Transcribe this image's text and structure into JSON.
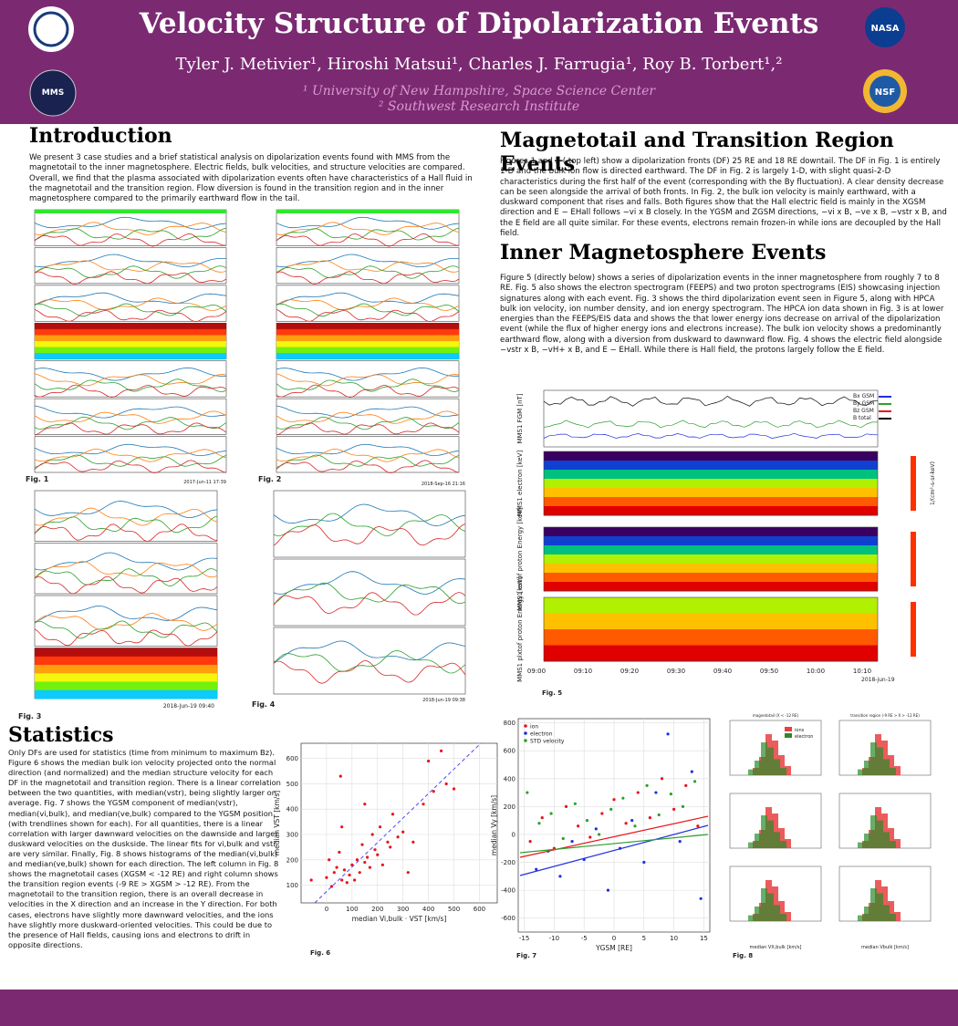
{
  "header": {
    "title": "Velocity Structure of Dipolarization Events",
    "authors": "Tyler J. Metivier¹, Hiroshi Matsui¹, Charles J. Farrugia¹, Roy B. Torbert¹,²",
    "affiliations": [
      "¹ University of New Hampshire, Space Science Center",
      "² Southwest Research Institute"
    ],
    "logos": [
      "MMS",
      "NASA",
      "NSF"
    ]
  },
  "sections": {
    "introduction": {
      "heading": "Introduction",
      "text": "We present 3 case studies and a brief statistical analysis on dipolarization events found with MMS from the magnetotail to the inner magnetosphere. Electric fields, bulk velocities, and structure velocities are compared. Overall, we find that the plasma associated with dipolarization events often have characteristics of a Hall fluid in the magnetotail and the transition region. Flow diversion is found in the transition region and in the inner magnetosphere compared to the primarily earthward flow in the tail."
    },
    "magnetotail": {
      "heading": "Magnetotail and Transition Region Events",
      "text": "Figures 1 and 2 ( top left) show a dipolarization fronts (DF) 25 RE and 18 RE downtail. The DF in Fig. 1 is entirely 1-D and the bulk ion flow is directed earthward. The DF in Fig. 2 is largely 1-D, with slight quasi-2-D characteristics during the first half of the event (corresponding with the By fluctuation). A clear density decrease can be seen alongside the arrival of both fronts. In Fig. 2, the bulk ion velocity is mainly earthward, with a duskward component that rises and falls. Both figures show that the Hall electric field is mainly in the XGSM direction and E − EHall follows −vi x B closely. In the YGSM and ZGSM directions, −vi x B, −ve x B, −vstr x B, and the E field are all quite similar. For these events, electrons remain frozen-in while ions are decoupled by the Hall field."
    },
    "inner": {
      "heading": "Inner Magnetosphere Events",
      "text": "Figure 5 (directly below) shows a series of dipolarization events in the inner magnetosphere from roughly 7 to 8 RE. Fig. 5 also shows the electron spectrogram (FEEPS) and two proton spectrograms (EIS) showcasing injection signatures along with each event. Fig. 3 shows the third dipolarization event seen in Figure 5, along with HPCA bulk ion velocity, ion number density, and ion energy spectrogram. The HPCA ion data shown in Fig. 3 is at lower energies than the FEEPS/EIS data and shows the that lower energy ions decrease on arrival of the dipolarization event (while the flux of higher energy ions and electrons increase). The bulk ion velocity shows a predominantly earthward flow, along with a diversion from duskward to dawnward flow. Fig. 4 shows the electric field alongside −vstr x B, −vH+ x B, and E − EHall. While there is Hall field, the protons largely follow the E field."
    },
    "statistics": {
      "heading": "Statistics",
      "text": "Only DFs are used for statistics (time from minimum to maximum Bz). Figure 6 shows the median bulk ion velocity projected onto the normal direction (and normalized) and the median structure velocity for each DF in the magnetotail and transition region. There is a linear correlation between the two quantities, with median(vstr), being slightly larger on average. Fig. 7 shows the YGSM component of median(vstr), median(vi,bulk), and median(ve,bulk) compared to the YGSM position (with trendlines shown for each). For all quantities, there is a linear correlation with larger dawnward velocities on the dawnside and larger duskward velocities on the duskside. The linear fits for vi,bulk and vstr are very similar. Finally, Fig. 8 shows histograms of the median(vi,bulk) and median(ve,bulk) shown for each direction. The left column in Fig. 8 shows the magnetotail cases (XGSM < -12 RE) and right column shows the transition region events (-9 RE > XGSM > -12 RE). From the magnetotail to the transition region, there is an overall decrease in velocities in the X direction and an increase in the Y direction. For both cases, electrons have slightly more dawnward velocities, and the ions have slightly more duskward-oriented velocities. This could be due to the presence of Hall fields, causing ions and electrons to drift in opposite directions."
    }
  },
  "figures": {
    "fig1": {
      "caption": "Fig. 1",
      "date": "2017-Jun-11 17:39"
    },
    "fig2": {
      "caption": "Fig. 2",
      "date": "2018-Sep-16 21:16"
    },
    "fig3": {
      "caption": "Fig. 3",
      "date": "2018-Jun-19 09:40"
    },
    "fig4": {
      "caption": "Fig. 4",
      "date": "2018-Jun-19 09:38"
    },
    "fig5": {
      "caption": "Fig. 5",
      "panels": [
        "MMS1 FGM [nT]",
        "MMS1 electron [keV]",
        "MMS1 extof proton Energy [keV]",
        "MMS1 plxtof proton Energy [keV]"
      ],
      "legend": [
        "Bx GSM",
        "By GSM",
        "Bz GSM",
        "B total"
      ],
      "colorbar": "1/(cm²-s-sr-keV)",
      "xticks": [
        "09:00",
        "09:10",
        "09:20",
        "09:30",
        "09:40",
        "09:50",
        "10:00",
        "10:10"
      ],
      "date": "2018-jun-19"
    },
    "fig8": {
      "caption": "Fig. 8",
      "titles": [
        "magnetotail (X < -12 RE)",
        "transition region (-9 RE > X > -12 RE)"
      ],
      "legend": [
        "ions",
        "electron"
      ],
      "xlabels": [
        "median VX,bulk [km/s]",
        "median Vbulk [km/s]"
      ]
    }
  },
  "chart_data": [
    {
      "type": "scatter",
      "caption": "Fig. 6",
      "xlabel": "median Vi,bulk · VST  [km/s]",
      "ylabel": "median VST [km/s]",
      "xlim": [
        -100,
        670
      ],
      "ylim": [
        30,
        660
      ],
      "xticks": [
        0,
        100,
        200,
        300,
        400,
        500,
        600
      ],
      "yticks": [
        100,
        200,
        300,
        400,
        500,
        600
      ],
      "grid": true,
      "series": [
        {
          "name": null,
          "color": "#e8141c",
          "x": [
            -60,
            0,
            10,
            20,
            30,
            40,
            50,
            55,
            60,
            70,
            80,
            90,
            100,
            110,
            120,
            130,
            140,
            150,
            160,
            170,
            180,
            190,
            200,
            210,
            220,
            240,
            250,
            260,
            280,
            300,
            320,
            340,
            380,
            400,
            420,
            450,
            470,
            500,
            60,
            150
          ],
          "y": [
            120,
            130,
            200,
            95,
            150,
            170,
            230,
            530,
            120,
            160,
            110,
            140,
            180,
            120,
            200,
            150,
            260,
            190,
            210,
            170,
            300,
            240,
            220,
            330,
            180,
            270,
            250,
            380,
            290,
            310,
            150,
            270,
            420,
            590,
            470,
            630,
            500,
            480,
            330,
            420
          ]
        }
      ]
    },
    {
      "type": "scatter",
      "caption": "Fig. 7",
      "xlabel": "YGSM [RE]",
      "ylabel": "median Vy [km/s]",
      "xlim": [
        -16,
        16
      ],
      "ylim": [
        -700,
        830
      ],
      "xticks": [
        -15,
        -10,
        -5,
        0,
        5,
        10,
        15
      ],
      "yticks": [
        -600,
        -400,
        -200,
        0,
        200,
        400,
        600,
        800
      ],
      "grid": true,
      "legend": "upper left",
      "series": [
        {
          "name": "ion",
          "color": "#e8141c",
          "x": [
            -14,
            -12,
            -10,
            -8,
            -6,
            -4,
            -2,
            0,
            2,
            4,
            6,
            8,
            10,
            12,
            14
          ],
          "y": [
            -50,
            120,
            -100,
            200,
            60,
            -20,
            150,
            250,
            80,
            300,
            120,
            400,
            180,
            350,
            60
          ]
        },
        {
          "name": "electron",
          "color": "#1f2fe0",
          "x": [
            -13,
            -11,
            -9,
            -7,
            -5,
            -3,
            -1,
            1,
            3,
            5,
            7,
            9,
            11,
            13,
            14.5
          ],
          "y": [
            -250,
            -120,
            -300,
            -50,
            -180,
            40,
            -400,
            -100,
            100,
            -200,
            300,
            720,
            -50,
            450,
            -460
          ]
        },
        {
          "name": "STD velocity",
          "color": "#2ca02c",
          "x": [
            -14.5,
            -12.5,
            -10.5,
            -8.5,
            -6.5,
            -4.5,
            -2.5,
            -0.5,
            1.5,
            3.5,
            5.5,
            7.5,
            9.5,
            11.5,
            13.5
          ],
          "y": [
            300,
            80,
            150,
            -30,
            220,
            100,
            0,
            180,
            260,
            60,
            350,
            140,
            290,
            200,
            380
          ]
        }
      ]
    }
  ]
}
